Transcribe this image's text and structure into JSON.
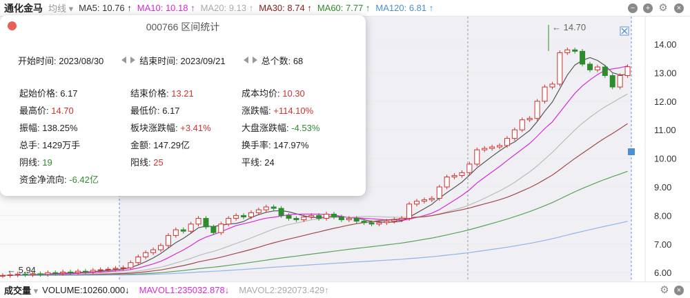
{
  "header": {
    "title": "通化金马",
    "ma_selector": "均线",
    "ma": [
      {
        "label": "MA5: 10.76 ↑",
        "color": "#333333"
      },
      {
        "label": "MA10: 10.18 ↑",
        "color": "#d62ad6"
      },
      {
        "label": "MA20: 9.13 ↑",
        "color": "#aaaaaa"
      },
      {
        "label": "MA30: 8.74 ↑",
        "color": "#8b1a1a"
      },
      {
        "label": "MA60: 7.77 ↑",
        "color": "#2e8b2e"
      },
      {
        "label": "MA120: 6.81 ↑",
        "color": "#4a8fd6"
      }
    ]
  },
  "footer": {
    "selector": "成交量",
    "volume": "VOLUME:10260.000↓",
    "mavol1": "MAVOL1:235032.878↓",
    "mavol2": "MAVOL2:292073.429↑"
  },
  "popup": {
    "title": "000766 区间统计",
    "start_label": "开始时间: 2023/08/30",
    "end_label": "结束时间: 2023/09/21",
    "count_label": "总个数: 68",
    "stats": [
      {
        "label": "起始价格: ",
        "value": "6.17",
        "tone": ""
      },
      {
        "label": "结束价格: ",
        "value": "13.21",
        "tone": "red"
      },
      {
        "label": "成本均价: ",
        "value": "10.30",
        "tone": "red"
      },
      {
        "label": "最高价: ",
        "value": "14.70",
        "tone": "red"
      },
      {
        "label": "最低价: ",
        "value": "6.17",
        "tone": ""
      },
      {
        "label": "涨跌幅: ",
        "value": "+114.10%",
        "tone": "red"
      },
      {
        "label": "振幅: ",
        "value": "138.25%",
        "tone": ""
      },
      {
        "label": "板块涨跌幅: ",
        "value": "+3.41%",
        "tone": "red"
      },
      {
        "label": "大盘涨跌幅: ",
        "value": "-4.53%",
        "tone": "green"
      },
      {
        "label": "总手: ",
        "value": "1429万手",
        "tone": ""
      },
      {
        "label": "金额: ",
        "value": "147.29亿",
        "tone": ""
      },
      {
        "label": "换手率: ",
        "value": "147.97%",
        "tone": ""
      },
      {
        "label": "阴线: ",
        "value": "19",
        "tone": "green"
      },
      {
        "label": "阳线: ",
        "value": "25",
        "tone": "red"
      },
      {
        "label": "平线: ",
        "value": "24",
        "tone": ""
      },
      {
        "label": "资金净流向: ",
        "value": "-6.42亿",
        "tone": "green"
      }
    ]
  },
  "chart_data": {
    "type": "candlestick",
    "y_ticks": [
      "14.00",
      "13.00",
      "12.00",
      "11.00",
      "10.00",
      "9.00",
      "8.00",
      "7.00",
      "6.00"
    ],
    "ylim": [
      5.85,
      14.9
    ],
    "max_label": "14.70",
    "min_label": "5.94",
    "pre_closes": [
      5.9,
      5.92,
      5.95,
      5.93,
      5.96,
      5.94,
      6.0,
      5.98,
      6.02,
      6.0,
      6.05,
      6.03,
      6.08,
      6.1,
      6.12,
      6.15
    ],
    "closes": [
      6.17,
      6.35,
      6.55,
      6.7,
      6.8,
      6.95,
      7.3,
      7.5,
      7.45,
      7.7,
      7.9,
      7.6,
      7.4,
      7.7,
      7.9,
      8.0,
      7.95,
      8.1,
      8.2,
      8.3,
      8.25,
      8.0,
      7.9,
      7.85,
      7.95,
      8.0,
      7.9,
      8.05,
      7.95,
      7.85,
      7.9,
      7.8,
      7.75,
      7.7,
      7.75,
      7.8,
      7.85,
      7.9,
      8.4,
      8.5,
      8.55,
      8.6,
      9.0,
      9.35,
      9.4,
      9.5,
      9.8,
      10.3,
      10.35,
      10.4,
      10.45,
      10.7,
      11.0,
      11.35,
      11.4,
      12.0,
      12.5,
      12.6,
      13.7,
      13.8,
      13.75,
      13.3,
      13.1,
      13.2,
      12.9,
      12.5,
      12.9,
      13.21
    ],
    "up_color": "#d0312d",
    "down_color": "#2e8b2e"
  }
}
